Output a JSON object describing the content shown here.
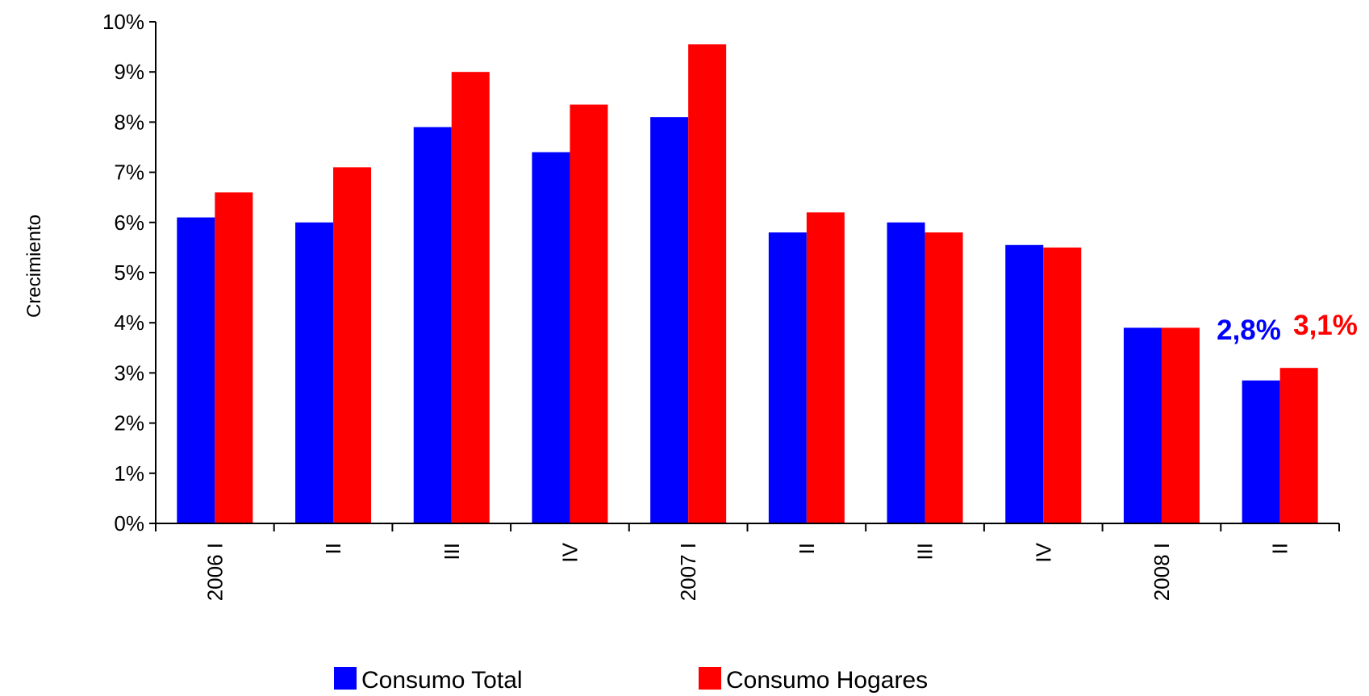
{
  "chart_data": {
    "type": "bar",
    "title": "",
    "xlabel": "",
    "ylabel": "Crecimiento",
    "ylim": [
      0,
      10
    ],
    "yticks": [
      0,
      1,
      2,
      3,
      4,
      5,
      6,
      7,
      8,
      9,
      10
    ],
    "ytick_labels": [
      "0%",
      "1%",
      "2%",
      "3%",
      "4%",
      "5%",
      "6%",
      "7%",
      "8%",
      "9%",
      "10%"
    ],
    "categories": [
      "2006 I",
      "II",
      "III",
      "IV",
      "2007 I",
      "II",
      "III",
      "IV",
      "2008 I",
      "II"
    ],
    "series": [
      {
        "name": "Consumo Total",
        "color": "#0000ff",
        "values": [
          6.1,
          6.0,
          7.9,
          7.4,
          8.1,
          5.8,
          6.0,
          5.55,
          3.9,
          2.85
        ]
      },
      {
        "name": "Consumo Hogares",
        "color": "#ff0000",
        "values": [
          6.6,
          7.1,
          9.0,
          8.35,
          9.55,
          6.2,
          5.8,
          5.5,
          3.9,
          3.1
        ]
      }
    ],
    "annotations": [
      {
        "text": "2,8%",
        "color": "#0000ff"
      },
      {
        "text": "3,1%",
        "color": "#ff0000"
      }
    ],
    "grid": false,
    "legend": "bottom"
  }
}
